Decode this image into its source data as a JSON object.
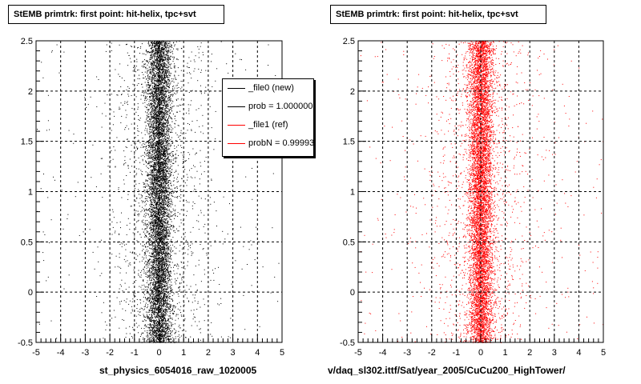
{
  "colors": {
    "series_new": "#000000",
    "series_ref": "#ff0000",
    "grid": "#000000"
  },
  "legend": {
    "entries": [
      {
        "label": "_file0 (new)",
        "color": "#000000"
      },
      {
        "label": "prob = 1.000000",
        "color": "#000000"
      },
      {
        "label": "_file1 (ref)",
        "color": "#ff0000"
      },
      {
        "label": "probN = 0.99993",
        "color": "#ff0000"
      }
    ]
  },
  "footer": {
    "left": "st_physics_6054016_raw_1020005",
    "right": "v/daq_sl302.ittf/Sat/year_2005/CuCu200_HighTower/"
  },
  "chart_data": [
    {
      "type": "scatter",
      "title": "StEMB primtrk: first point: hit-helix, tpc+svt",
      "xlabel": "",
      "ylabel": "",
      "xlim": [
        -5,
        5
      ],
      "ylim": [
        -0.5,
        2.5
      ],
      "xticks": [
        "-5",
        "-4",
        "-3",
        "-2",
        "-1",
        "0",
        "1",
        "2",
        "3",
        "4",
        "5"
      ],
      "yticks": [
        "-0.5",
        "0",
        "0.5",
        "1",
        "1.5",
        "2",
        "2.5"
      ],
      "grid": true,
      "legend_position": "top-right",
      "series": [
        {
          "name": "_file0 (new)",
          "color": "#000000",
          "distribution": {
            "x_center": 0,
            "x_core_sigma": 0.25,
            "x_halo_sigma": 1.0,
            "y_range": [
              -0.5,
              2.5
            ]
          }
        }
      ]
    },
    {
      "type": "scatter",
      "title": "StEMB primtrk: first point: hit-helix, tpc+svt",
      "xlabel": "",
      "ylabel": "",
      "xlim": [
        -5,
        5
      ],
      "ylim": [
        -0.5,
        2.5
      ],
      "xticks": [
        "-5",
        "-4",
        "-3",
        "-2",
        "-1",
        "0",
        "1",
        "2",
        "3",
        "4",
        "5"
      ],
      "yticks": [
        "-0.5",
        "0",
        "0.5",
        "1",
        "1.5",
        "2",
        "2.5"
      ],
      "grid": true,
      "series": [
        {
          "name": "_file1 (ref)",
          "color": "#ff0000",
          "distribution": {
            "x_center": 0,
            "x_core_sigma": 0.25,
            "x_halo_sigma": 1.0,
            "y_range": [
              -0.5,
              2.5
            ]
          }
        }
      ]
    }
  ]
}
